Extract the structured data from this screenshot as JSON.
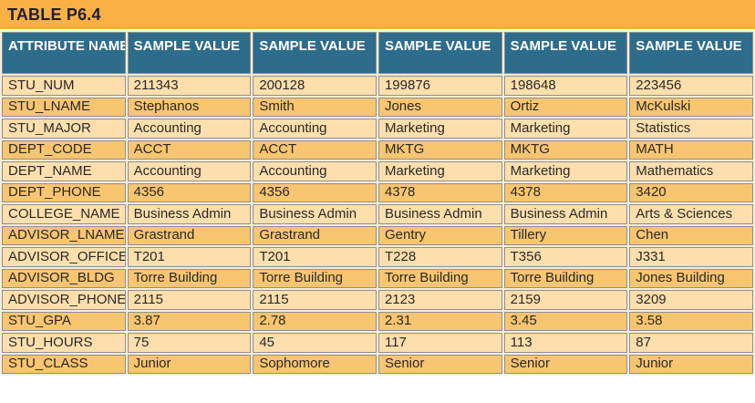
{
  "title": "TABLE P6.4",
  "table": {
    "header": [
      "ATTRIBUTE NAME",
      "SAMPLE VALUE",
      "SAMPLE VALUE",
      "SAMPLE VALUE",
      "SAMPLE VALUE",
      "SAMPLE VALUE"
    ],
    "rows": [
      [
        "STU_NUM",
        "211343",
        "200128",
        "199876",
        "198648",
        "223456"
      ],
      [
        "STU_LNAME",
        "Stephanos",
        "Smith",
        "Jones",
        "Ortiz",
        "McKulski"
      ],
      [
        "STU_MAJOR",
        "Accounting",
        "Accounting",
        "Marketing",
        "Marketing",
        "Statistics"
      ],
      [
        "DEPT_CODE",
        "ACCT",
        "ACCT",
        "MKTG",
        "MKTG",
        "MATH"
      ],
      [
        "DEPT_NAME",
        "Accounting",
        "Accounting",
        "Marketing",
        "Marketing",
        "Mathematics"
      ],
      [
        "DEPT_PHONE",
        "4356",
        "4356",
        "4378",
        "4378",
        "3420"
      ],
      [
        "COLLEGE_NAME",
        "Business Admin",
        "Business Admin",
        "Business Admin",
        "Business Admin",
        "Arts & Sciences"
      ],
      [
        "ADVISOR_LNAME",
        "Grastrand",
        "Grastrand",
        "Gentry",
        "Tillery",
        "Chen"
      ],
      [
        "ADVISOR_OFFICE",
        "T201",
        "T201",
        "T228",
        "T356",
        "J331"
      ],
      [
        "ADVISOR_BLDG",
        "Torre Building",
        "Torre Building",
        "Torre Building",
        "Torre Building",
        "Jones Building"
      ],
      [
        "ADVISOR_PHONE",
        "2115",
        "2115",
        "2123",
        "2159",
        "3209"
      ],
      [
        "STU_GPA",
        "3.87",
        "2.78",
        "2.31",
        "3.45",
        "3.58"
      ],
      [
        "STU_HOURS",
        "75",
        "45",
        "117",
        "113",
        "87"
      ],
      [
        "STU_CLASS",
        "Junior",
        "Sophomore",
        "Senior",
        "Senior",
        "Junior"
      ]
    ]
  },
  "colors": {
    "title_bg": "#FAB144",
    "title_text": "#221E30",
    "header_bg": "#2E6C8B",
    "header_text": "#FFFFFF",
    "row_light": "#FDDFAD",
    "row_dark": "#F8C571",
    "cell_border": "#8E8E8E",
    "cell_text": "#2B2826",
    "table_gap": "#F6EEDC"
  }
}
